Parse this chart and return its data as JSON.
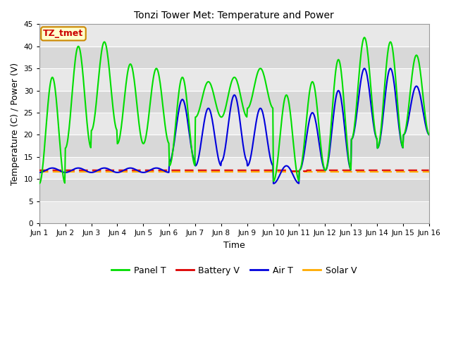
{
  "title": "Tonzi Tower Met: Temperature and Power",
  "xlabel": "Time",
  "ylabel": "Temperature (C) / Power (V)",
  "ylim": [
    0,
    45
  ],
  "yticks": [
    0,
    5,
    10,
    15,
    20,
    25,
    30,
    35,
    40,
    45
  ],
  "annotation_text": "TZ_tmet",
  "annotation_color": "#cc0000",
  "annotation_bg": "#ffffcc",
  "annotation_border": "#cc8800",
  "fig_bg": "#ffffff",
  "plot_bg": "#e8e8e8",
  "grid_color": "#ffffff",
  "xtick_labels": [
    "Jun 1",
    "Jun 2",
    "Jun 3",
    "Jun 4",
    "Jun 5",
    "Jun 6",
    "Jun 7",
    "Jun 8",
    "Jun 9",
    "Jun 10",
    "Jun 11",
    "Jun 12",
    "Jun 13",
    "Jun 14",
    "Jun 15",
    "Jun 16"
  ],
  "panel_t_color": "#00dd00",
  "battery_v_color": "#dd0000",
  "air_t_color": "#0000dd",
  "solar_v_color": "#ffaa00",
  "panel_t_lw": 1.5,
  "battery_v_lw": 1.5,
  "air_t_lw": 1.5,
  "solar_v_lw": 1.5,
  "panel_t_peaks": [
    33,
    40,
    41,
    36,
    35,
    33,
    32,
    33,
    35,
    29,
    32,
    37,
    42,
    41,
    38
  ],
  "panel_t_troughs": [
    9,
    17,
    21,
    18,
    18,
    13,
    24,
    24,
    26,
    9.5,
    12,
    12,
    19,
    17,
    20
  ],
  "air_t_peaks": [
    12.5,
    12.5,
    12.5,
    12.5,
    12.5,
    28,
    26,
    29,
    26,
    13,
    25,
    30,
    35,
    35,
    31
  ],
  "air_t_troughs": [
    11.5,
    11.5,
    11.5,
    11.5,
    11.5,
    14,
    13,
    14,
    13,
    9,
    12,
    12,
    19,
    17,
    20
  ],
  "battery_v_base": 12.0,
  "solar_v_base": 11.7,
  "n_days": 15,
  "pts_per_day": 48
}
